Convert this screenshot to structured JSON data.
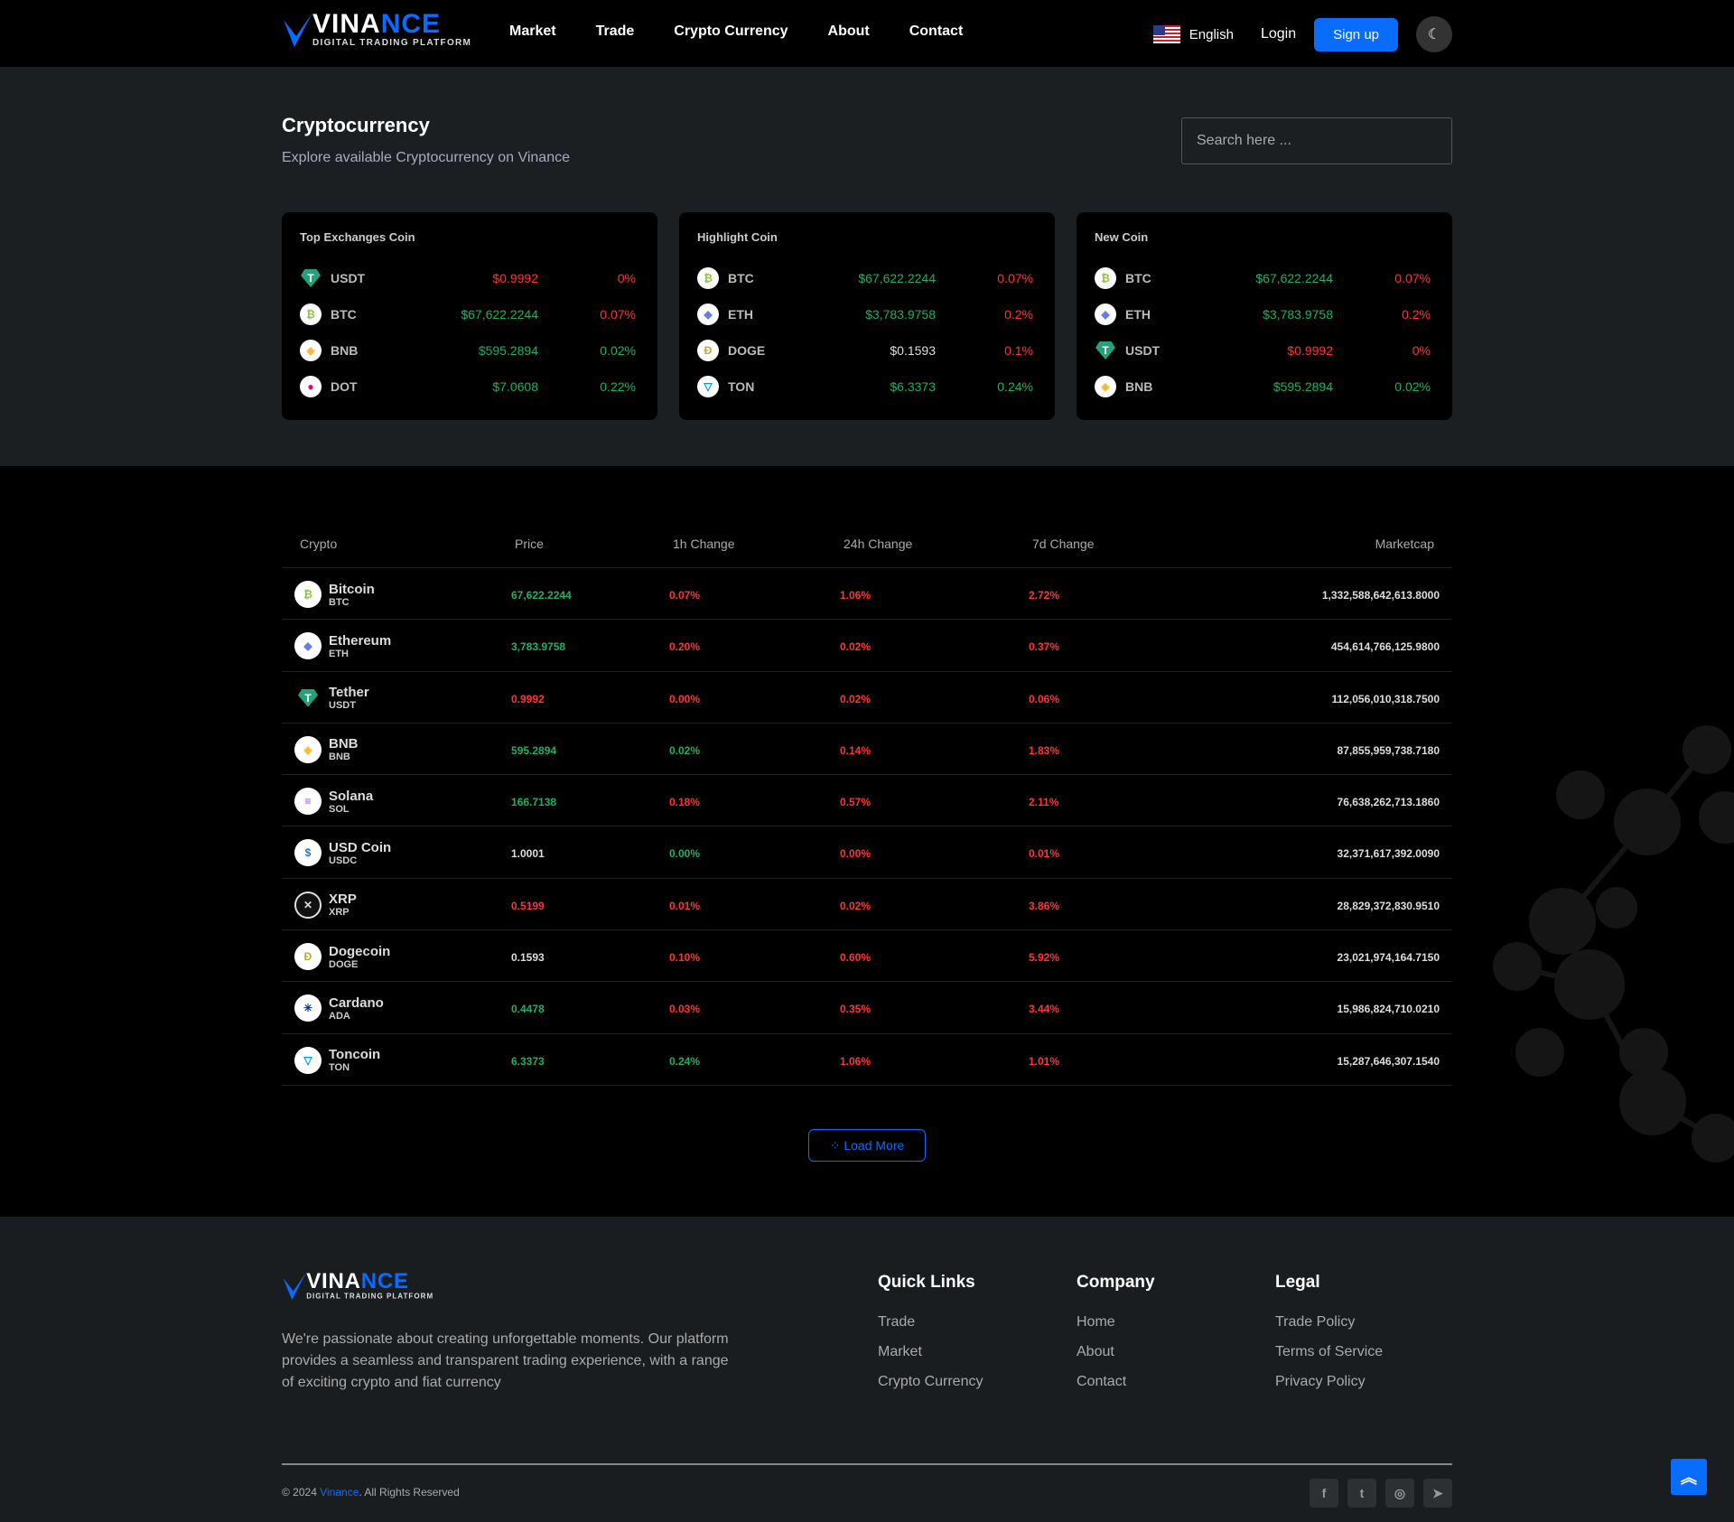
{
  "header": {
    "logo_word_a": "VINA",
    "logo_word_b": "NCE",
    "logo_tagline": "DIGITAL TRADING PLATFORM",
    "nav": [
      "Market",
      "Trade",
      "Crypto Currency",
      "About",
      "Contact"
    ],
    "language": "English",
    "login": "Login",
    "signup": "Sign up",
    "theme_icon": "moon-icon"
  },
  "hero": {
    "title": "Cryptocurrency",
    "subtitle": "Explore available Cryptocurrency on Vinance",
    "search_placeholder": "Search here ..."
  },
  "colors": {
    "accent": "#0a6cff",
    "up": "#1fb063",
    "down": "#ff3434"
  },
  "cards": [
    {
      "title": "Top Exchanges Coin",
      "rows": [
        {
          "symbol": "USDT",
          "price": "$0.9992",
          "change": "0%",
          "price_dir": "down",
          "change_dir": "down"
        },
        {
          "symbol": "BTC",
          "price": "$67,622.2244",
          "change": "0.07%",
          "price_dir": "up",
          "change_dir": "down"
        },
        {
          "symbol": "BNB",
          "price": "$595.2894",
          "change": "0.02%",
          "price_dir": "up",
          "change_dir": "up"
        },
        {
          "symbol": "DOT",
          "price": "$7.0608",
          "change": "0.22%",
          "price_dir": "up",
          "change_dir": "up"
        }
      ]
    },
    {
      "title": "Highlight Coin",
      "rows": [
        {
          "symbol": "BTC",
          "price": "$67,622.2244",
          "change": "0.07%",
          "price_dir": "up",
          "change_dir": "down"
        },
        {
          "symbol": "ETH",
          "price": "$3,783.9758",
          "change": "0.2%",
          "price_dir": "up",
          "change_dir": "down"
        },
        {
          "symbol": "DOGE",
          "price": "$0.1593",
          "change": "0.1%",
          "price_dir": "flat",
          "change_dir": "down"
        },
        {
          "symbol": "TON",
          "price": "$6.3373",
          "change": "0.24%",
          "price_dir": "up",
          "change_dir": "up"
        }
      ]
    },
    {
      "title": "New Coin",
      "rows": [
        {
          "symbol": "BTC",
          "price": "$67,622.2244",
          "change": "0.07%",
          "price_dir": "up",
          "change_dir": "down"
        },
        {
          "symbol": "ETH",
          "price": "$3,783.9758",
          "change": "0.2%",
          "price_dir": "up",
          "change_dir": "down"
        },
        {
          "symbol": "USDT",
          "price": "$0.9992",
          "change": "0%",
          "price_dir": "down",
          "change_dir": "down"
        },
        {
          "symbol": "BNB",
          "price": "$595.2894",
          "change": "0.02%",
          "price_dir": "up",
          "change_dir": "up"
        }
      ]
    }
  ],
  "table": {
    "headers": [
      "Crypto",
      "Price",
      "1h Change",
      "24h Change",
      "7d Change",
      "Marketcap"
    ],
    "rows": [
      {
        "name": "Bitcoin",
        "symbol": "BTC",
        "price": "67,622.2244",
        "h1": "0.07%",
        "h24": "1.06%",
        "d7": "2.72%",
        "cap": "1,332,588,642,613.8000",
        "dirs": [
          "up",
          "down",
          "down",
          "down"
        ]
      },
      {
        "name": "Ethereum",
        "symbol": "ETH",
        "price": "3,783.9758",
        "h1": "0.20%",
        "h24": "0.02%",
        "d7": "0.37%",
        "cap": "454,614,766,125.9800",
        "dirs": [
          "up",
          "down",
          "down",
          "down"
        ]
      },
      {
        "name": "Tether",
        "symbol": "USDT",
        "price": "0.9992",
        "h1": "0.00%",
        "h24": "0.02%",
        "d7": "0.06%",
        "cap": "112,056,010,318.7500",
        "dirs": [
          "down",
          "down",
          "down",
          "down"
        ]
      },
      {
        "name": "BNB",
        "symbol": "BNB",
        "price": "595.2894",
        "h1": "0.02%",
        "h24": "0.14%",
        "d7": "1.83%",
        "cap": "87,855,959,738.7180",
        "dirs": [
          "up",
          "up",
          "down",
          "down"
        ]
      },
      {
        "name": "Solana",
        "symbol": "SOL",
        "price": "166.7138",
        "h1": "0.18%",
        "h24": "0.57%",
        "d7": "2.11%",
        "cap": "76,638,262,713.1860",
        "dirs": [
          "up",
          "down",
          "down",
          "down"
        ]
      },
      {
        "name": "USD Coin",
        "symbol": "USDC",
        "price": "1.0001",
        "h1": "0.00%",
        "h24": "0.00%",
        "d7": "0.01%",
        "cap": "32,371,617,392.0090",
        "dirs": [
          "flat",
          "up",
          "down",
          "down"
        ]
      },
      {
        "name": "XRP",
        "symbol": "XRP",
        "price": "0.5199",
        "h1": "0.01%",
        "h24": "0.02%",
        "d7": "3.86%",
        "cap": "28,829,372,830.9510",
        "dirs": [
          "down",
          "down",
          "down",
          "down"
        ]
      },
      {
        "name": "Dogecoin",
        "symbol": "DOGE",
        "price": "0.1593",
        "h1": "0.10%",
        "h24": "0.60%",
        "d7": "5.92%",
        "cap": "23,021,974,164.7150",
        "dirs": [
          "flat",
          "down",
          "down",
          "down"
        ]
      },
      {
        "name": "Cardano",
        "symbol": "ADA",
        "price": "0.4478",
        "h1": "0.03%",
        "h24": "0.35%",
        "d7": "3.44%",
        "cap": "15,986,824,710.0210",
        "dirs": [
          "up",
          "down",
          "down",
          "down"
        ]
      },
      {
        "name": "Toncoin",
        "symbol": "TON",
        "price": "6.3373",
        "h1": "0.24%",
        "h24": "1.06%",
        "d7": "1.01%",
        "cap": "15,287,646,307.1540",
        "dirs": [
          "up",
          "up",
          "down",
          "down"
        ]
      }
    ],
    "load_more": "Load More"
  },
  "footer": {
    "description": "We're passionate about creating unforgettable moments. Our platform provides a seamless and transparent trading experience, with a range of exciting crypto and fiat currency",
    "columns": [
      {
        "title": "Quick Links",
        "links": [
          "Trade",
          "Market",
          "Crypto Currency"
        ]
      },
      {
        "title": "Company",
        "links": [
          "Home",
          "About",
          "Contact"
        ]
      },
      {
        "title": "Legal",
        "links": [
          "Trade Policy",
          "Terms of Service",
          "Privacy Policy"
        ]
      }
    ],
    "copyright_prefix": "© 2024 ",
    "brand": "Vinance",
    "copyright_suffix": ". All Rights Reserved",
    "social": [
      "facebook-icon",
      "twitter-icon",
      "instagram-icon",
      "telegram-icon"
    ]
  }
}
